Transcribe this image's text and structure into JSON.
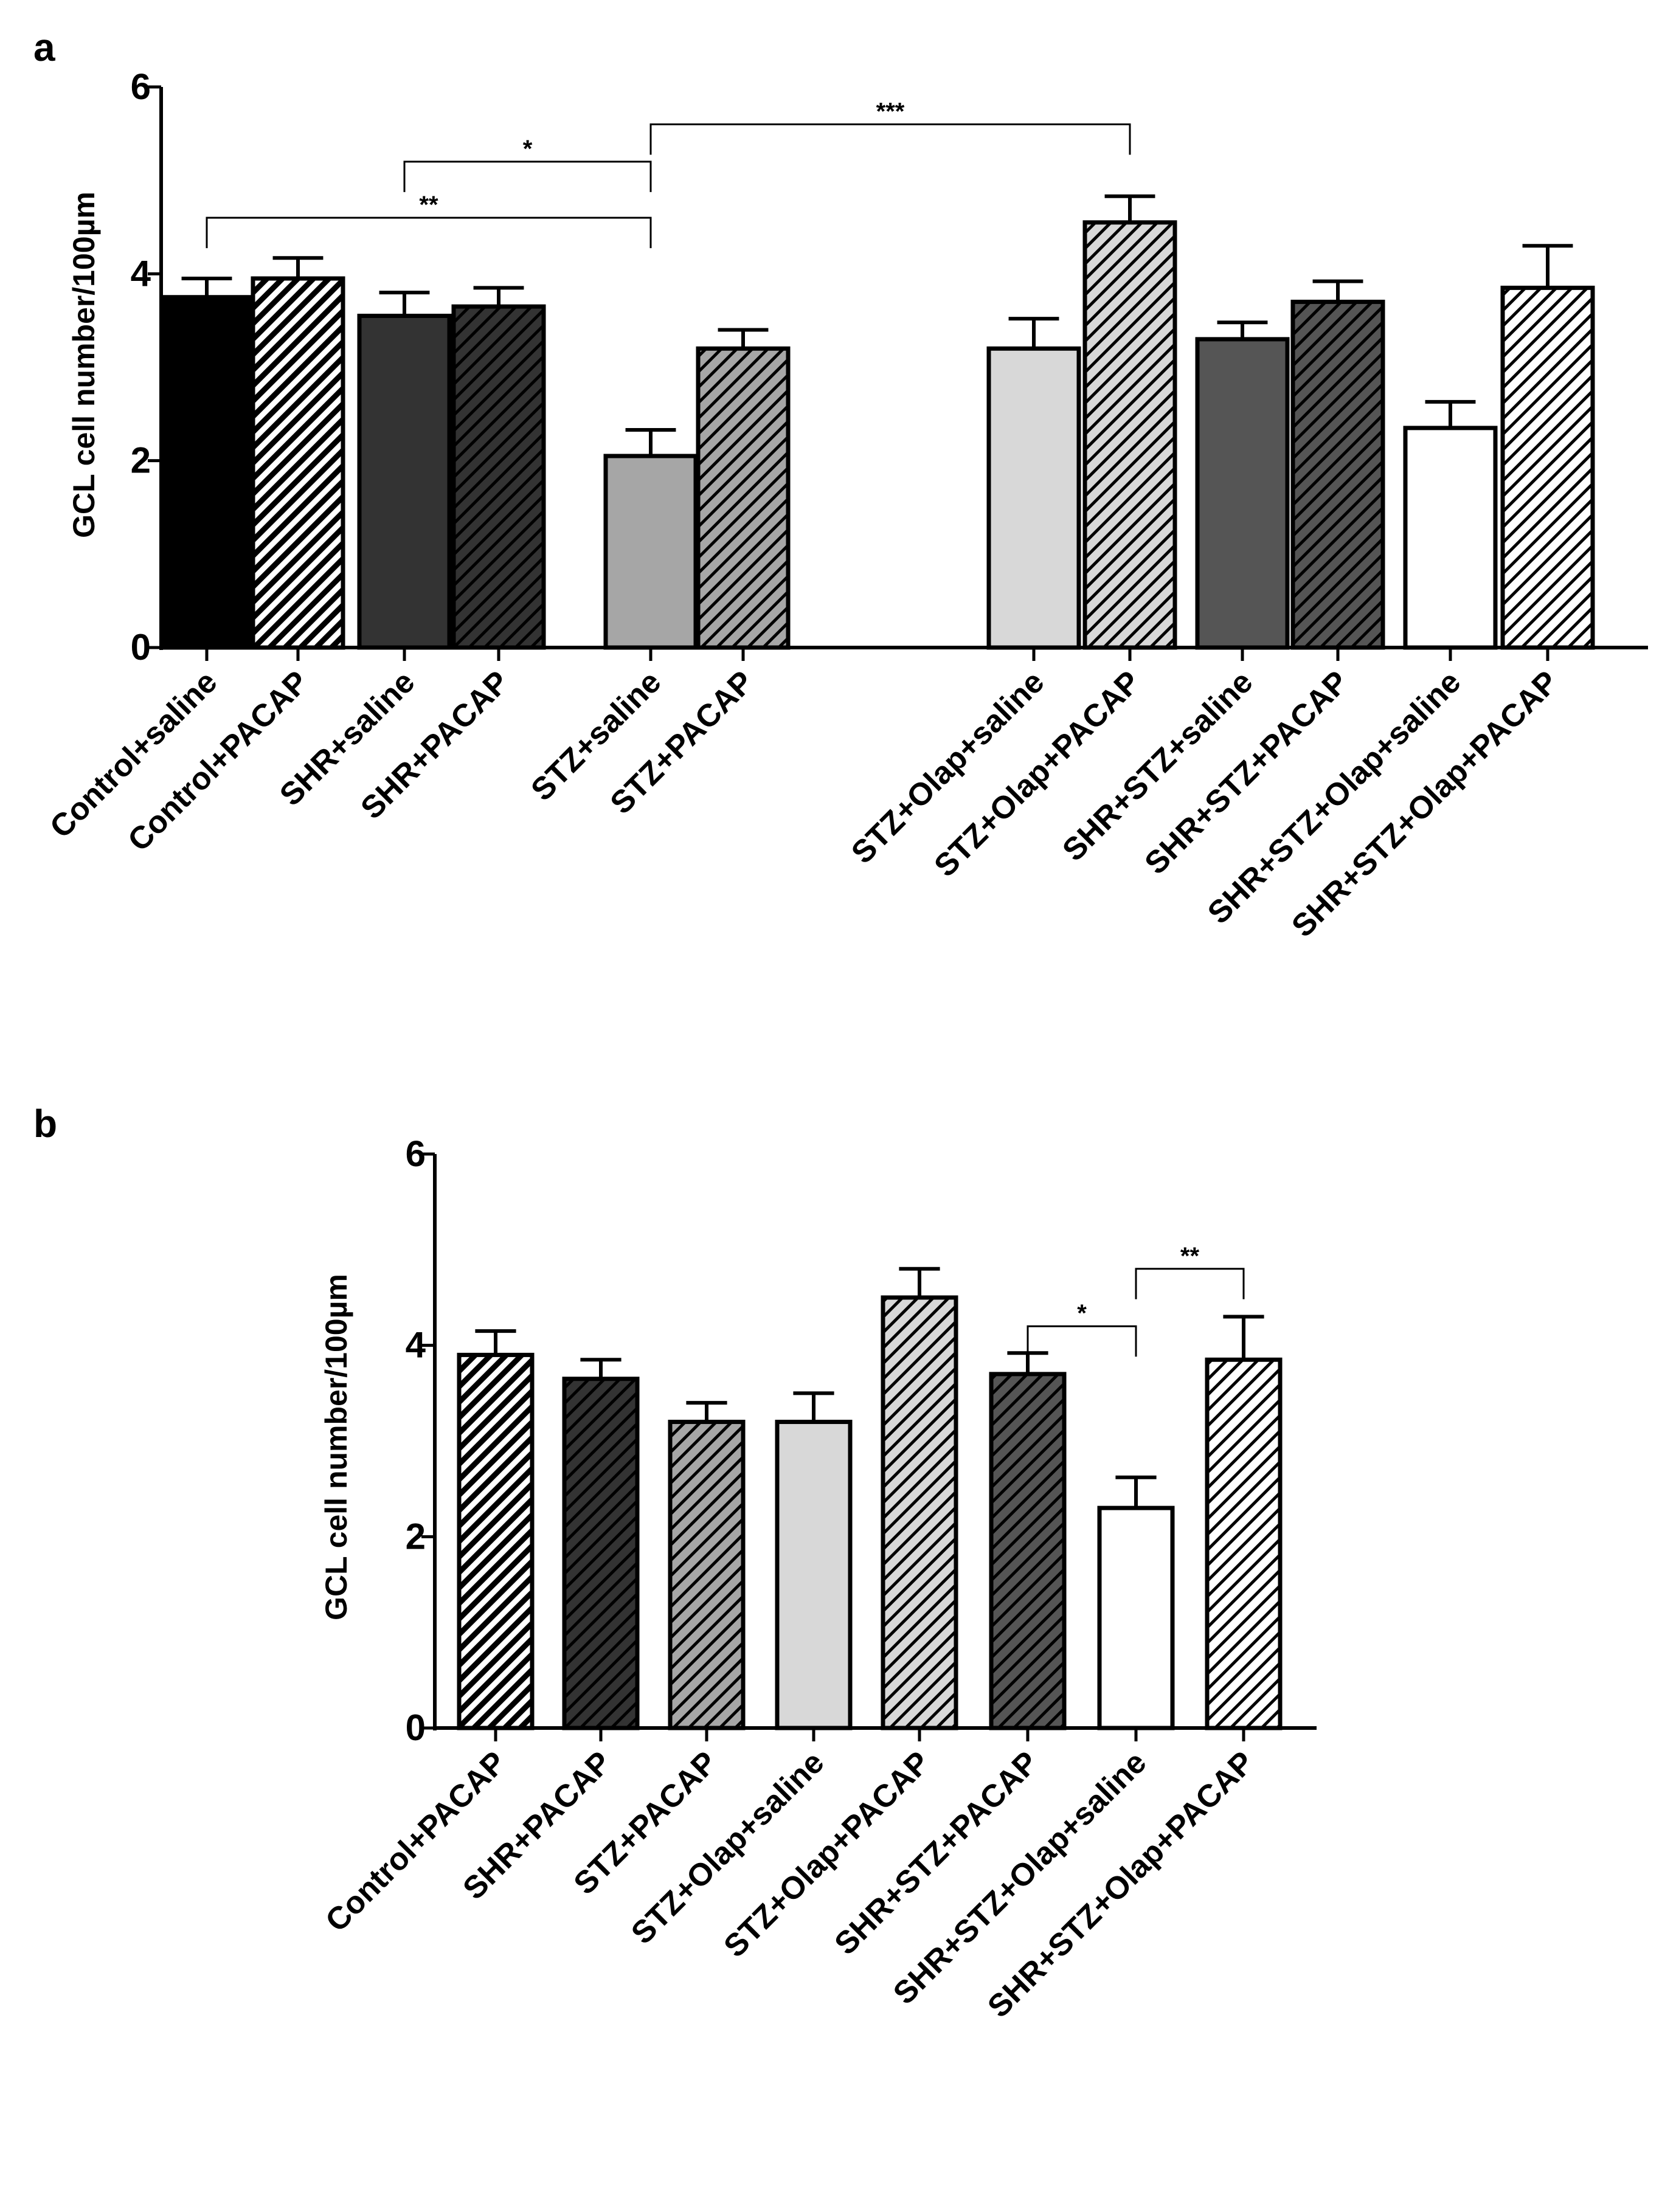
{
  "chart_data": [
    {
      "panel": "a",
      "type": "bar",
      "ylabel": "GCL cell number/100µm",
      "ylim": [
        0,
        6
      ],
      "yticks": [
        "0",
        "2",
        "4",
        "6"
      ],
      "grid": false,
      "categories": [
        "Control+saline",
        "Control+PACAP",
        "SHR+saline",
        "SHR+PACAP",
        "STZ+saline",
        "STZ+PACAP",
        "STZ+Olap+saline",
        "STZ+Olap+PACAP",
        "SHR+STZ+saline",
        "SHR+STZ+PACAP",
        "SHR+STZ+Olap+saline",
        "SHR+STZ+Olap+PACAP"
      ],
      "values": [
        3.75,
        3.95,
        3.55,
        3.65,
        2.05,
        3.2,
        3.2,
        4.55,
        3.3,
        3.7,
        2.35,
        3.85
      ],
      "errors": [
        0.2,
        0.22,
        0.25,
        0.2,
        0.28,
        0.2,
        0.32,
        0.28,
        0.18,
        0.22,
        0.28,
        0.45
      ],
      "fills": [
        "#000000",
        "#000000",
        "#333333",
        "#333333",
        "#a6a6a6",
        "#a6a6a6",
        "#d8d8d8",
        "#d8d8d8",
        "#555555",
        "#555555",
        "#ffffff",
        "#ffffff"
      ],
      "hatched": [
        false,
        true,
        false,
        true,
        false,
        true,
        false,
        true,
        false,
        true,
        false,
        true
      ],
      "significance": [
        {
          "from": 0,
          "to": 4,
          "label": "**",
          "y": 4.6
        },
        {
          "from": 2,
          "to": 4,
          "label": "*",
          "y": 5.2
        },
        {
          "from": 4,
          "to": 7,
          "label": "***",
          "y": 5.6
        }
      ]
    },
    {
      "panel": "b",
      "type": "bar",
      "ylabel": "GCL cell number/100µm",
      "ylim": [
        0,
        6
      ],
      "yticks": [
        "0",
        "2",
        "4",
        "6"
      ],
      "grid": false,
      "categories": [
        "Control+PACAP",
        "SHR+PACAP",
        "STZ+PACAP",
        "STZ+Olap+saline",
        "STZ+Olap+PACAP",
        "SHR+STZ+PACAP",
        "SHR+STZ+Olap+saline",
        "SHR+STZ+Olap+PACAP"
      ],
      "values": [
        3.9,
        3.65,
        3.2,
        3.2,
        4.5,
        3.7,
        2.3,
        3.85
      ],
      "errors": [
        0.25,
        0.2,
        0.2,
        0.3,
        0.3,
        0.22,
        0.32,
        0.45
      ],
      "fills": [
        "#000000",
        "#333333",
        "#a6a6a6",
        "#d8d8d8",
        "#d8d8d8",
        "#555555",
        "#ffffff",
        "#ffffff"
      ],
      "hatched": [
        true,
        true,
        true,
        false,
        true,
        true,
        false,
        true
      ],
      "significance": [
        {
          "from": 5,
          "to": 6,
          "label": "*",
          "y": 4.2
        },
        {
          "from": 6,
          "to": 7,
          "label": "**",
          "y": 4.8
        }
      ]
    }
  ]
}
